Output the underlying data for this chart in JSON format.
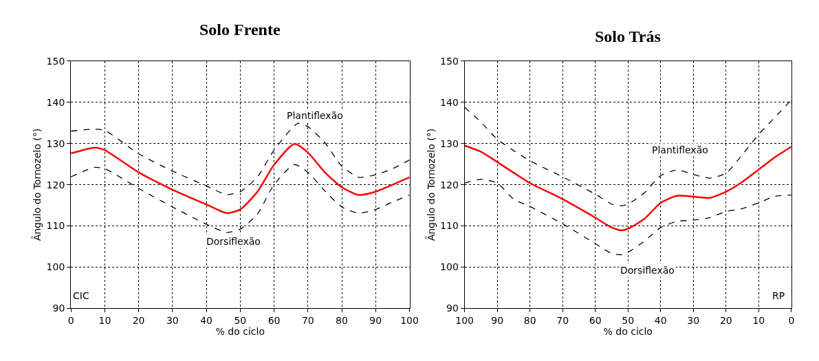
{
  "chart_data": [
    {
      "type": "line",
      "title": "Solo Frente",
      "xlabel": "% do ciclo",
      "ylabel": "Ângulo do Tornozelo (°)",
      "xlim": [
        0,
        100
      ],
      "xticks": [
        0,
        10,
        20,
        30,
        40,
        50,
        60,
        70,
        80,
        90,
        100
      ],
      "ylim": [
        90,
        150
      ],
      "yticks": [
        90,
        100,
        110,
        120,
        130,
        140,
        150
      ],
      "grid": true,
      "annotations": [
        "Plantiflexão",
        "Dorsiflexão",
        "CIC"
      ],
      "series": [
        {
          "color": "#ff0000",
          "line_style": "solid",
          "x": [
            0,
            7,
            10,
            20,
            30,
            40,
            46,
            50,
            55,
            60,
            66,
            70,
            75,
            80,
            85,
            90,
            95,
            100
          ],
          "values": [
            127.6,
            129.0,
            128.4,
            123.0,
            118.8,
            115.2,
            113.1,
            114.0,
            118.2,
            124.8,
            129.9,
            127.8,
            123.0,
            119.4,
            117.5,
            118.3,
            120.0,
            121.8
          ]
        },
        {
          "color": "#000000",
          "line_style": "dashed",
          "x": [
            0,
            7,
            10,
            20,
            30,
            40,
            46,
            50,
            55,
            60,
            67,
            70,
            75,
            80,
            85,
            90,
            95,
            100
          ],
          "values": [
            133.0,
            133.5,
            133.2,
            127.5,
            123.3,
            119.7,
            117.6,
            118.3,
            121.8,
            128.4,
            134.9,
            134.1,
            130.2,
            124.5,
            121.8,
            122.4,
            123.9,
            126.0
          ]
        },
        {
          "color": "#000000",
          "line_style": "dashed",
          "x": [
            0,
            7,
            10,
            20,
            30,
            40,
            46,
            50,
            55,
            60,
            66,
            70,
            75,
            80,
            85,
            90,
            95,
            100
          ],
          "values": [
            121.9,
            124.2,
            123.9,
            119.1,
            114.6,
            110.4,
            108.4,
            109.2,
            112.8,
            120.0,
            124.9,
            123.0,
            118.5,
            114.6,
            113.1,
            114.0,
            115.8,
            117.5
          ]
        }
      ]
    },
    {
      "type": "line",
      "title": "Solo Trás",
      "xlabel": "% do ciclo",
      "ylabel": "Ângulo do Tornozelo (°)",
      "xlim": [
        100,
        0
      ],
      "xticks": [
        100,
        90,
        80,
        70,
        60,
        50,
        40,
        30,
        20,
        10,
        0
      ],
      "ylim": [
        90,
        150
      ],
      "yticks": [
        90,
        100,
        110,
        120,
        130,
        140,
        150
      ],
      "grid": true,
      "annotations": [
        "Plantiflexão",
        "Dorsiflexão",
        "RP"
      ],
      "series": [
        {
          "color": "#ff0000",
          "line_style": "solid",
          "x": [
            100,
            95,
            90,
            80,
            70,
            60,
            55,
            52,
            50,
            45,
            40,
            35,
            30,
            25,
            20,
            15,
            10,
            5,
            0
          ],
          "values": [
            129.5,
            128.0,
            125.5,
            120.4,
            116.5,
            112.0,
            109.6,
            108.9,
            109.3,
            111.7,
            115.6,
            117.3,
            117.1,
            116.8,
            118.3,
            120.7,
            123.7,
            126.7,
            129.2
          ]
        },
        {
          "color": "#000000",
          "line_style": "dashed",
          "x": [
            100,
            95,
            90,
            85,
            80,
            70,
            60,
            55,
            52,
            50,
            45,
            40,
            35,
            30,
            25,
            20,
            15,
            10,
            5,
            0
          ],
          "values": [
            138.8,
            135.2,
            131.0,
            128.3,
            125.8,
            121.9,
            117.7,
            115.3,
            114.9,
            115.3,
            118.0,
            122.2,
            123.6,
            122.5,
            121.6,
            122.8,
            127.3,
            132.2,
            136.4,
            140.6
          ]
        },
        {
          "color": "#000000",
          "line_style": "dashed",
          "x": [
            100,
            95,
            90,
            85,
            80,
            70,
            60,
            55,
            52,
            50,
            45,
            40,
            35,
            30,
            25,
            20,
            15,
            10,
            5,
            0
          ],
          "values": [
            120.4,
            121.3,
            120.4,
            116.5,
            114.7,
            110.5,
            105.7,
            103.3,
            103.0,
            103.6,
            106.3,
            109.6,
            111.1,
            111.4,
            112.0,
            113.5,
            114.2,
            115.6,
            117.2,
            117.5
          ]
        }
      ]
    }
  ]
}
